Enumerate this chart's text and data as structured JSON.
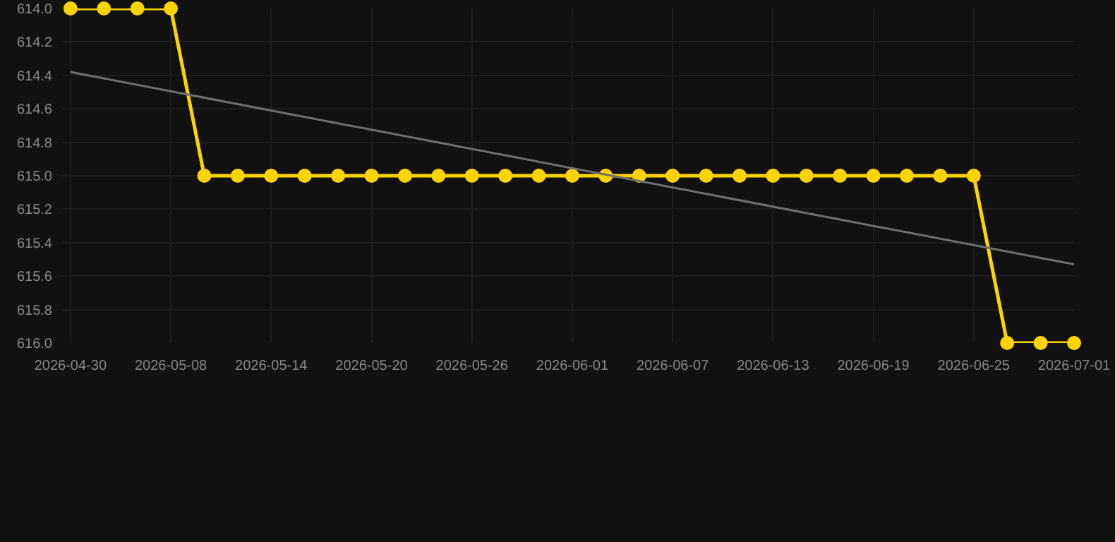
{
  "chart_data": {
    "type": "line",
    "categories": [
      "2026-04-30",
      null,
      null,
      "2026-05-08",
      null,
      null,
      "2026-05-14",
      null,
      null,
      "2026-05-20",
      null,
      null,
      "2026-05-26",
      null,
      null,
      "2026-06-01",
      null,
      null,
      "2026-06-07",
      null,
      null,
      "2026-06-13",
      null,
      null,
      "2026-06-19",
      null,
      null,
      "2026-06-25",
      null,
      null,
      "2026-07-01"
    ],
    "series": [
      {
        "color": "#ffd300",
        "marker": "circle",
        "values": [
          614,
          614,
          614,
          614,
          615,
          615,
          615,
          615,
          615,
          615,
          615,
          615,
          615,
          615,
          615,
          615,
          615,
          615,
          615,
          615,
          615,
          615,
          615,
          615,
          615,
          615,
          615,
          615,
          616,
          616,
          616
        ]
      },
      {
        "type": "line",
        "color": "#707070",
        "marker": "none",
        "values": [
          614.38,
          null,
          null,
          null,
          null,
          null,
          null,
          null,
          null,
          null,
          null,
          null,
          null,
          null,
          null,
          null,
          null,
          null,
          null,
          null,
          null,
          null,
          null,
          null,
          null,
          null,
          null,
          null,
          null,
          null,
          615.53
        ]
      }
    ],
    "ylim": [
      616,
      614
    ],
    "yticks": [
      {
        "value": 614,
        "label": "614.0"
      },
      614.2,
      614.4,
      614.6,
      614.8,
      {
        "value": 615,
        "label": "615.0"
      },
      615.2,
      615.4,
      615.6,
      615.8,
      {
        "value": 616,
        "label": "616.0"
      }
    ],
    "grid": true,
    "legend": false
  }
}
